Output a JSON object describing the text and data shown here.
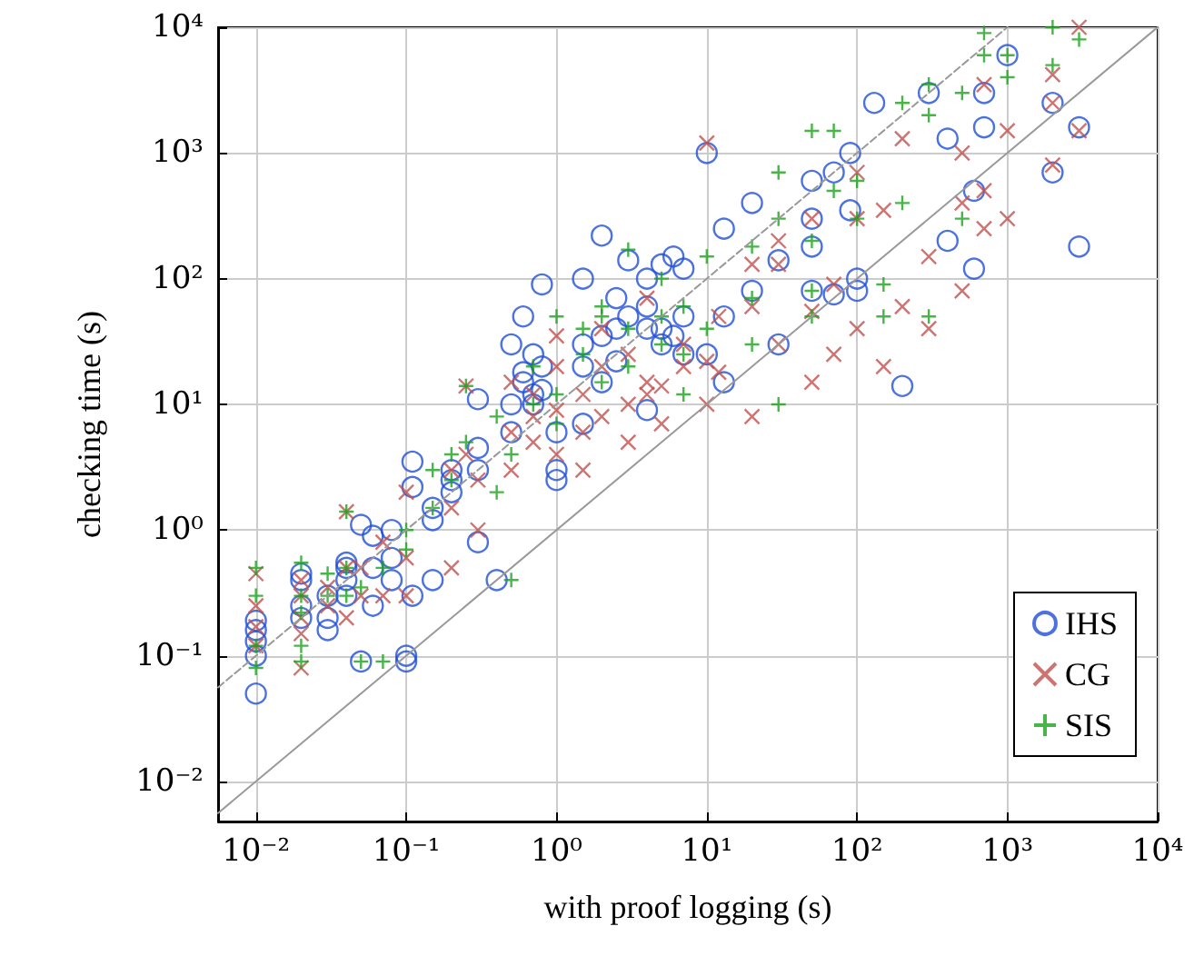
{
  "chart_data": {
    "type": "scatter",
    "xlabel": "with proof logging (s)",
    "ylabel": "checking time (s)",
    "log": "xy",
    "grid": true,
    "legend": "bottom right",
    "xlim": [
      0.0056,
      10000
    ],
    "ylim": [
      0.0048,
      10000
    ],
    "xticks": [
      {
        "value": 0.01,
        "label": "10⁻²"
      },
      {
        "value": 0.1,
        "label": "10⁻¹"
      },
      {
        "value": 1,
        "label": "10⁰"
      },
      {
        "value": 10,
        "label": "10¹"
      },
      {
        "value": 100,
        "label": "10²"
      },
      {
        "value": 1000,
        "label": "10³"
      },
      {
        "value": 10000,
        "label": "10⁴"
      }
    ],
    "yticks": [
      {
        "value": 0.01,
        "label": "10⁻²"
      },
      {
        "value": 0.1,
        "label": "10⁻¹"
      },
      {
        "value": 1,
        "label": "10⁰"
      },
      {
        "value": 10,
        "label": "10¹"
      },
      {
        "value": 100,
        "label": "10²"
      },
      {
        "value": 1000,
        "label": "10³"
      },
      {
        "value": 10000,
        "label": "10⁴"
      }
    ],
    "series": [
      {
        "type": "line",
        "color": "#999999",
        "line_style": "solid",
        "marker": "none",
        "x": [
          0.0056,
          10000
        ],
        "values": [
          0.0056,
          10000
        ]
      },
      {
        "type": "line",
        "color": "#999999",
        "line_style": "dashed",
        "marker": "none",
        "x": [
          0.0056,
          1000
        ],
        "values": [
          0.056,
          10000
        ]
      },
      {
        "name": "IHS",
        "color": "#1f4fd8",
        "marker": "circle",
        "x": [
          0.01,
          0.01,
          0.01,
          0.01,
          0.01,
          0.02,
          0.02,
          0.02,
          0.02,
          0.03,
          0.03,
          0.03,
          0.04,
          0.04,
          0.04,
          0.04,
          0.05,
          0.05,
          0.06,
          0.06,
          0.06,
          0.08,
          0.08,
          0.08,
          0.1,
          0.1,
          0.11,
          0.11,
          0.11,
          0.15,
          0.15,
          0.15,
          0.2,
          0.2,
          0.2,
          0.3,
          0.3,
          0.3,
          0.3,
          0.4,
          0.5,
          0.5,
          0.5,
          0.6,
          0.6,
          0.6,
          0.7,
          0.7,
          0.7,
          0.8,
          0.8,
          0.8,
          1,
          1,
          1,
          1.5,
          1.5,
          1.5,
          1.5,
          2,
          2,
          2,
          2.5,
          2.5,
          2.5,
          3,
          3,
          4,
          4,
          4,
          4,
          5,
          5,
          5,
          6,
          6,
          7,
          7,
          7,
          10,
          10,
          13,
          13,
          13,
          20,
          20,
          30,
          30,
          50,
          50,
          50,
          50,
          70,
          70,
          90,
          90,
          100,
          100,
          130,
          200,
          300,
          400,
          400,
          600,
          600,
          700,
          700,
          1000,
          2000,
          2000,
          3000,
          3000
        ],
        "values": [
          0.05,
          0.1,
          0.13,
          0.16,
          0.19,
          0.2,
          0.25,
          0.4,
          0.45,
          0.16,
          0.2,
          0.3,
          0.3,
          0.4,
          0.5,
          0.55,
          0.09,
          1.1,
          0.25,
          0.5,
          0.9,
          0.6,
          1,
          0.4,
          0.09,
          0.1,
          2.2,
          3.5,
          0.3,
          1.5,
          0.4,
          1.2,
          2.5,
          3,
          2,
          0.8,
          4.5,
          3,
          11,
          0.4,
          6,
          30,
          10,
          50,
          15,
          18,
          10,
          12,
          25,
          90,
          20,
          13,
          2.5,
          3,
          6,
          100,
          30,
          20,
          7,
          220,
          15,
          35,
          70,
          40,
          22,
          140,
          50,
          60,
          100,
          40,
          9,
          30,
          40,
          130,
          150,
          35,
          120,
          50,
          25,
          1000,
          25,
          250,
          50,
          15,
          400,
          80,
          140,
          30,
          600,
          300,
          180,
          80,
          700,
          75,
          350,
          1000,
          100,
          80,
          2500,
          14,
          3000,
          1300,
          200,
          500,
          120,
          1600,
          3000,
          6000,
          2500,
          700,
          180,
          1600
        ]
      },
      {
        "name": "CG",
        "color": "#c0504d",
        "marker": "cross",
        "x": [
          0.01,
          0.01,
          0.01,
          0.01,
          0.02,
          0.02,
          0.02,
          0.02,
          0.02,
          0.03,
          0.03,
          0.04,
          0.04,
          0.04,
          0.05,
          0.05,
          0.07,
          0.07,
          0.1,
          0.1,
          0.1,
          0.2,
          0.2,
          0.2,
          0.25,
          0.25,
          0.3,
          0.3,
          0.5,
          0.5,
          0.5,
          0.7,
          0.7,
          0.7,
          1,
          1,
          1,
          1,
          1.5,
          1.5,
          1.5,
          2,
          2,
          2,
          3,
          3,
          3,
          4,
          4,
          4,
          5,
          5,
          7,
          7,
          10,
          10,
          10,
          12,
          12,
          20,
          20,
          20,
          30,
          30,
          30,
          50,
          50,
          50,
          70,
          70,
          100,
          100,
          100,
          150,
          150,
          200,
          200,
          300,
          300,
          500,
          500,
          500,
          700,
          700,
          700,
          1000,
          1000,
          2000,
          2000,
          2000,
          3000,
          3000
        ],
        "values": [
          0.45,
          0.25,
          0.17,
          0.12,
          0.4,
          0.3,
          0.2,
          0.15,
          0.08,
          0.35,
          0.25,
          1.4,
          0.5,
          0.2,
          0.3,
          0.5,
          0.8,
          0.3,
          0.3,
          0.6,
          2,
          0.5,
          3,
          1.5,
          14,
          4,
          1,
          2.5,
          6,
          3,
          15,
          8,
          5,
          12,
          35,
          4,
          9,
          20,
          12,
          6,
          3,
          40,
          20,
          8,
          25,
          10,
          5,
          70,
          15,
          12,
          14,
          7,
          30,
          20,
          1200,
          22,
          10,
          50,
          18,
          130,
          60,
          8,
          130,
          200,
          30,
          300,
          55,
          15,
          90,
          25,
          700,
          300,
          40,
          350,
          20,
          1300,
          60,
          150,
          40,
          400,
          1000,
          80,
          250,
          500,
          3500,
          300,
          1500,
          800,
          2500,
          4200,
          1500,
          10000
        ]
      },
      {
        "name": "SIS",
        "color": "#1aa31a",
        "marker": "plus",
        "x": [
          0.01,
          0.01,
          0.01,
          0.01,
          0.02,
          0.02,
          0.02,
          0.02,
          0.02,
          0.03,
          0.03,
          0.04,
          0.04,
          0.04,
          0.05,
          0.05,
          0.07,
          0.07,
          0.1,
          0.1,
          0.15,
          0.15,
          0.2,
          0.2,
          0.25,
          0.25,
          0.4,
          0.4,
          0.5,
          0.5,
          0.7,
          0.7,
          1,
          1,
          1,
          1.5,
          1.5,
          2,
          2,
          2,
          3,
          3,
          3,
          5,
          5,
          5,
          7,
          7,
          7,
          10,
          10,
          20,
          20,
          20,
          30,
          30,
          30,
          50,
          50,
          50,
          50,
          70,
          70,
          100,
          100,
          150,
          150,
          200,
          200,
          300,
          300,
          300,
          500,
          500,
          700,
          700,
          1000,
          1000,
          2000,
          2000,
          3000
        ],
        "values": [
          0.5,
          0.3,
          0.12,
          0.08,
          0.55,
          0.3,
          0.22,
          0.12,
          0.09,
          0.45,
          0.3,
          1.4,
          0.3,
          0.5,
          0.09,
          0.35,
          0.09,
          0.5,
          0.7,
          1,
          1.5,
          3,
          4,
          2.5,
          14,
          5,
          2,
          8,
          0.4,
          4,
          20,
          10,
          50,
          12,
          7,
          40,
          25,
          60,
          50,
          15,
          170,
          20,
          40,
          100,
          50,
          30,
          60,
          12,
          25,
          150,
          40,
          180,
          70,
          30,
          700,
          10,
          300,
          1500,
          200,
          80,
          50,
          1500,
          500,
          600,
          300,
          90,
          50,
          400,
          2500,
          50,
          2000,
          3500,
          300,
          3000,
          9000,
          6000,
          6000,
          4000,
          10000,
          5000,
          8000
        ]
      }
    ]
  }
}
